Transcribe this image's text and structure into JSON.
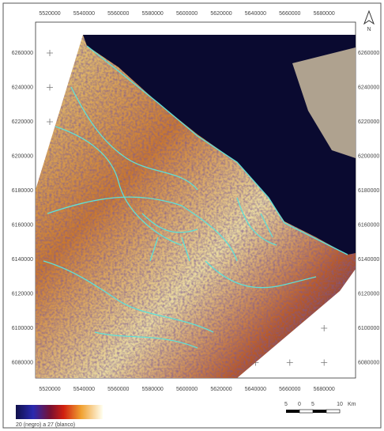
{
  "map": {
    "x_labels_top": [
      "5520000",
      "5540000",
      "5560000",
      "5580000",
      "5600000",
      "5620000",
      "5640000",
      "5660000",
      "5680000"
    ],
    "x_labels_bottom": [
      "5520000",
      "5540000",
      "5560000",
      "5580000",
      "5600000",
      "5620000",
      "5640000",
      "5660000",
      "5680000"
    ],
    "y_labels_left": [
      "6260000",
      "6240000",
      "6220000",
      "6200000",
      "6180000",
      "6160000",
      "6140000",
      "6120000",
      "6100000",
      "6080000"
    ],
    "y_labels_right": [
      "6260000",
      "6240000",
      "6220000",
      "6200000",
      "6180000",
      "6160000",
      "6140000",
      "6120000",
      "6100000",
      "6080000"
    ],
    "north": "N",
    "legend_caption": "20 (negro) a 27 (blanco)",
    "scale_labels": [
      "5",
      "0",
      "5",
      "10"
    ],
    "scale_unit": "Km"
  }
}
